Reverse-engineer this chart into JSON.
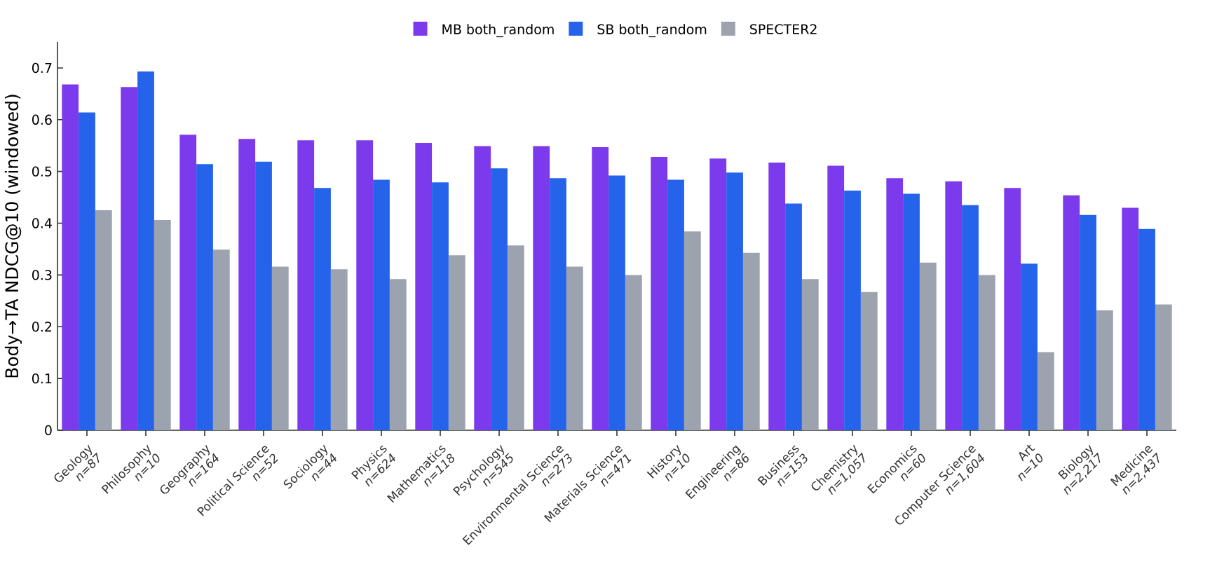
{
  "chart_data": {
    "type": "bar",
    "ylabel": "Body→TA NDCG@10 (windowed)",
    "categories": [
      "Geology\n*n=87*",
      "Philosophy\n*n=10*",
      "Geography\n*n=164*",
      "Political Science\n*n=52*",
      "Sociology\n*n=44*",
      "Physics\n*n=624*",
      "Mathematics\n*n=118*",
      "Psychology\n*n=545*",
      "Environmental Science\n*n=273*",
      "Materials Science\n*n=471*",
      "History\n*n=10*",
      "Engineering\n*n=86*",
      "Business\n*n=153*",
      "Chemistry\n*n=1,057*",
      "Economics\n*n=60*",
      "Computer Science\n*n=1,604*",
      "Art\n*n=10*",
      "Biology\n*n=2,217*",
      "Medicine\n*n=2,437*"
    ],
    "series": [
      {
        "name": "MB both_random",
        "color": "#7c3aed",
        "values": [
          0.668,
          0.663,
          0.571,
          0.563,
          0.56,
          0.56,
          0.555,
          0.549,
          0.549,
          0.547,
          0.528,
          0.525,
          0.517,
          0.511,
          0.487,
          0.481,
          0.468,
          0.454,
          0.43
        ]
      },
      {
        "name": "SB both_random",
        "color": "#2563eb",
        "values": [
          0.614,
          0.693,
          0.514,
          0.519,
          0.468,
          0.484,
          0.479,
          0.506,
          0.487,
          0.492,
          0.484,
          0.498,
          0.438,
          0.463,
          0.457,
          0.435,
          0.322,
          0.416,
          0.389
        ]
      },
      {
        "name": "SPECTER2",
        "color": "#9ca3af",
        "values": [
          0.425,
          0.406,
          0.349,
          0.316,
          0.311,
          0.292,
          0.338,
          0.357,
          0.316,
          0.3,
          0.384,
          0.343,
          0.292,
          0.267,
          0.324,
          0.3,
          0.151,
          0.232,
          0.243
        ]
      }
    ],
    "ylim": [
      0,
      0.75
    ],
    "yticks": [
      0,
      0.1,
      0.2,
      0.3,
      0.4,
      0.5,
      0.6,
      0.7
    ],
    "grid": false,
    "legend": "top"
  }
}
